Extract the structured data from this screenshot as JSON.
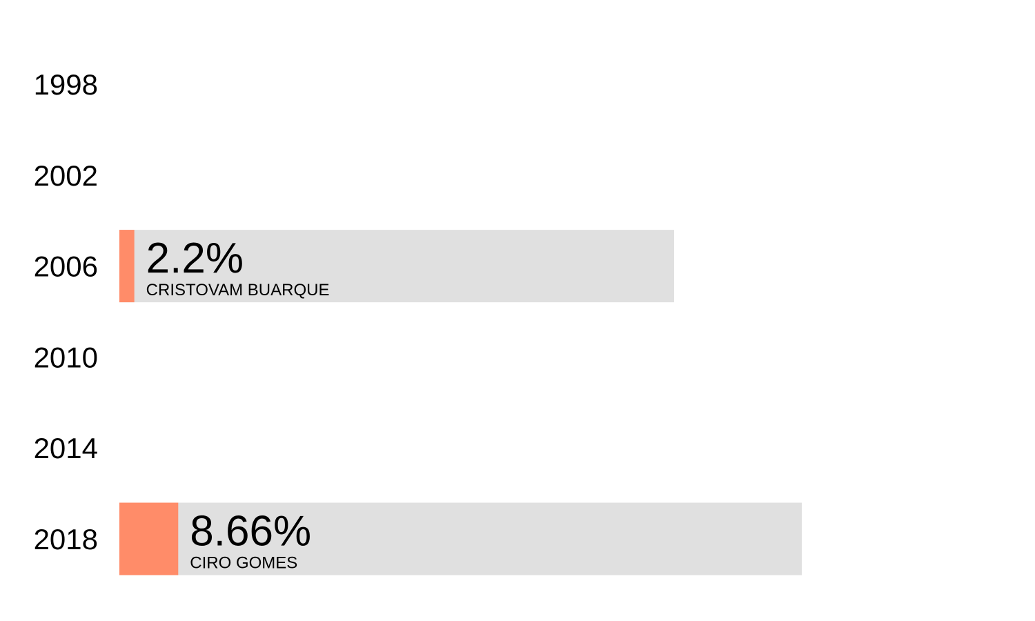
{
  "chart_data": {
    "type": "bar",
    "orientation": "horizontal",
    "categories": [
      "1998",
      "2002",
      "2006",
      "2010",
      "2014",
      "2018"
    ],
    "values": [
      null,
      null,
      2.2,
      null,
      null,
      8.66
    ],
    "value_labels": [
      "",
      "",
      "2.2%",
      "",
      "",
      "8.66%"
    ],
    "candidates": [
      "",
      "",
      "CRISTOVAM BUARQUE",
      "",
      "",
      "CIRO GOMES"
    ],
    "xlim": [
      0,
      100
    ],
    "grid": false,
    "legend": "none"
  },
  "colors": {
    "bar": "#FF8C69",
    "label_box": "#E0E0E0",
    "text": "#000000"
  }
}
